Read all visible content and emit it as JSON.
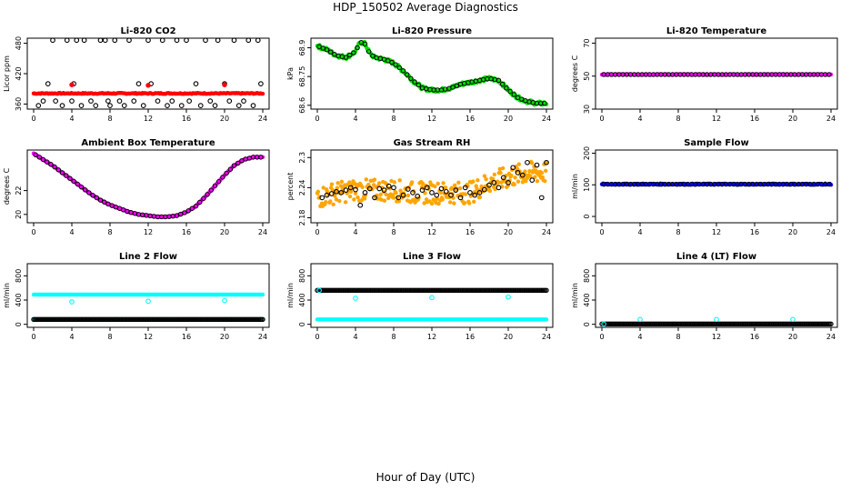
{
  "page": {
    "title": "HDP_150502  Average Diagnostics",
    "xlabel": "Hour of Day (UTC)"
  },
  "colors": {
    "black": "#000000",
    "red": "#ff0000",
    "green": "#00dd00",
    "magenta": "#ff00ff",
    "orange": "#ffa500",
    "blue": "#0000ff",
    "cyan": "#00ffff"
  },
  "chart_data": [
    {
      "type": "scatter",
      "title": "Li-820 CO2",
      "ylabel": "Licor ppm",
      "xlim": [
        0,
        24
      ],
      "ylim": [
        350,
        490
      ],
      "xticks": [
        0,
        4,
        8,
        12,
        16,
        20,
        24
      ],
      "yticks": [
        360,
        420,
        480
      ],
      "series": [
        {
          "color": "#ff0000",
          "style": "dense-line",
          "x": [
            0,
            24
          ],
          "y": [
            381,
            381
          ],
          "jitter": 1
        },
        {
          "color": "#000000",
          "marker": "open-circle",
          "x": [
            0.5,
            1.0,
            1.5,
            2.0,
            2.3,
            3.0,
            3.5,
            4.0,
            4.2,
            4.5,
            5.0,
            5.3,
            6.0,
            6.5,
            7.0,
            7.5,
            7.8,
            8.0,
            8.5,
            9.0,
            9.5,
            10.0,
            10.5,
            11.0,
            11.5,
            12.0,
            12.3,
            13.0,
            13.5,
            14.0,
            14.5,
            15.0,
            15.5,
            16.0,
            16.3,
            17.0,
            17.5,
            18.0,
            18.5,
            19.0,
            19.3,
            20.0,
            20.5,
            21.0,
            21.5,
            22.0,
            22.5,
            23.0,
            23.5,
            23.8
          ],
          "y": [
            357,
            366,
            400,
            486,
            366,
            357,
            486,
            366,
            400,
            486,
            357,
            486,
            366,
            357,
            486,
            486,
            366,
            357,
            486,
            366,
            357,
            486,
            366,
            400,
            357,
            486,
            400,
            366,
            486,
            357,
            366,
            486,
            357,
            486,
            366,
            400,
            357,
            486,
            366,
            357,
            486,
            400,
            366,
            486,
            357,
            366,
            486,
            357,
            486,
            400
          ]
        },
        {
          "color": "#ff0000",
          "marker": "filled-circle",
          "x": [
            4.0,
            12.0,
            20.0
          ],
          "y": [
            398,
            397,
            398
          ]
        }
      ]
    },
    {
      "type": "scatter",
      "title": "Li-820 Pressure",
      "ylabel": "kPa",
      "xlim": [
        0,
        24
      ],
      "ylim": [
        68.58,
        68.95
      ],
      "xticks": [
        0,
        4,
        8,
        12,
        16,
        20,
        24
      ],
      "yticks": [
        68.6,
        68.75,
        68.9
      ],
      "series": [
        {
          "color": "#00dd00",
          "style": "band",
          "jitter": 0.01,
          "x": [
            0,
            1,
            2,
            3,
            4,
            4.5,
            5,
            5.5,
            6,
            7,
            8,
            9,
            10,
            11,
            12,
            13,
            14,
            15,
            16,
            17,
            18,
            19,
            20,
            21,
            22,
            23,
            24
          ],
          "y": [
            68.91,
            68.89,
            68.86,
            68.85,
            68.88,
            68.93,
            68.92,
            68.87,
            68.85,
            68.84,
            68.82,
            68.78,
            68.73,
            68.69,
            68.68,
            68.68,
            68.69,
            68.71,
            68.72,
            68.73,
            68.74,
            68.73,
            68.68,
            68.64,
            68.62,
            68.61,
            68.61
          ]
        },
        {
          "color": "#000000",
          "marker": "open-circle",
          "source": "band",
          "every": 0.4
        }
      ]
    },
    {
      "type": "scatter",
      "title": "Li-820 Temperature",
      "ylabel": "degrees C",
      "xlim": [
        0,
        24
      ],
      "ylim": [
        30,
        73
      ],
      "xticks": [
        0,
        4,
        8,
        12,
        16,
        20,
        24
      ],
      "yticks": [
        30,
        50,
        70
      ],
      "series": [
        {
          "color": "#ff00ff",
          "style": "dense-line",
          "x": [
            0,
            24
          ],
          "y": [
            51,
            51
          ],
          "jitter": 0.2
        },
        {
          "color": "#000000",
          "marker": "open-circle",
          "source": "band",
          "every": 0.4
        }
      ]
    },
    {
      "type": "scatter",
      "title": "Ambient Box Temperature",
      "ylabel": "degrees C",
      "xlim": [
        0,
        24
      ],
      "ylim": [
        19.3,
        25.4
      ],
      "xticks": [
        0,
        4,
        8,
        12,
        16,
        20,
        24
      ],
      "yticks": [
        20,
        22
      ],
      "series": [
        {
          "color": "#ff00ff",
          "style": "band",
          "jitter": 0.02,
          "x": [
            0,
            1,
            2,
            3,
            4,
            5,
            6,
            7,
            8,
            9,
            10,
            11,
            12,
            13,
            14,
            15,
            16,
            17,
            18,
            19,
            20,
            21,
            22,
            23,
            24
          ],
          "y": [
            25.1,
            24.6,
            24.1,
            23.5,
            22.9,
            22.3,
            21.7,
            21.2,
            20.8,
            20.5,
            20.2,
            20.0,
            19.9,
            19.8,
            19.8,
            19.9,
            20.2,
            20.7,
            21.5,
            22.4,
            23.3,
            24.1,
            24.6,
            24.8,
            24.8
          ]
        },
        {
          "color": "#000000",
          "marker": "open-circle",
          "source": "band",
          "every": 0.4
        }
      ]
    },
    {
      "type": "scatter",
      "title": "Gas Stream RH",
      "ylabel": "percent",
      "xlim": [
        0,
        24
      ],
      "ylim": [
        2.17,
        2.315
      ],
      "xticks": [
        0,
        4,
        8,
        12,
        16,
        20,
        24
      ],
      "yticks": [
        2.18,
        2.24,
        2.3
      ],
      "series": [
        {
          "color": "#ffa500",
          "style": "band",
          "jitter": 0.022,
          "x": [
            0,
            2,
            4,
            6,
            8,
            10,
            12,
            14,
            16,
            18,
            20,
            22,
            24
          ],
          "y": [
            2.22,
            2.23,
            2.235,
            2.235,
            2.235,
            2.23,
            2.23,
            2.23,
            2.23,
            2.25,
            2.26,
            2.27,
            2.27
          ]
        },
        {
          "color": "#000000",
          "marker": "open-circle",
          "x": [
            0.5,
            1.0,
            1.5,
            2.0,
            2.5,
            3.0,
            3.5,
            4.0,
            4.5,
            5.0,
            5.5,
            6.0,
            6.5,
            7.0,
            7.5,
            8.0,
            8.5,
            9.0,
            9.5,
            10.0,
            10.5,
            11.0,
            11.5,
            12.0,
            12.5,
            13.0,
            13.5,
            14.0,
            14.5,
            15.0,
            15.5,
            16.0,
            16.5,
            17.0,
            17.5,
            18.0,
            18.5,
            19.0,
            19.5,
            20.0,
            20.5,
            21.0,
            21.5,
            22.0,
            22.5,
            23.0,
            23.5,
            24.0
          ],
          "y": [
            2.22,
            2.225,
            2.228,
            2.232,
            2.23,
            2.235,
            2.24,
            2.236,
            2.205,
            2.23,
            2.238,
            2.22,
            2.238,
            2.235,
            2.243,
            2.24,
            2.22,
            2.225,
            2.237,
            2.23,
            2.223,
            2.235,
            2.24,
            2.23,
            2.225,
            2.238,
            2.232,
            2.225,
            2.235,
            2.22,
            2.24,
            2.23,
            2.225,
            2.23,
            2.236,
            2.245,
            2.25,
            2.24,
            2.26,
            2.25,
            2.28,
            2.27,
            2.265,
            2.29,
            2.255,
            2.285,
            2.22,
            2.29
          ]
        }
      ]
    },
    {
      "type": "scatter",
      "title": "Sample Flow",
      "ylabel": "ml/min",
      "xlim": [
        0,
        24
      ],
      "ylim": [
        -20,
        210
      ],
      "xticks": [
        0,
        4,
        8,
        12,
        16,
        20,
        24
      ],
      "yticks": [
        0,
        100,
        200
      ],
      "series": [
        {
          "color": "#0000ff",
          "style": "dense-line",
          "x": [
            0,
            24
          ],
          "y": [
            102,
            102
          ],
          "jitter": 2
        },
        {
          "color": "#000000",
          "marker": "open-circle",
          "source": "band",
          "every": 0.4
        }
      ]
    },
    {
      "type": "scatter",
      "title": "Line 2 Flow",
      "ylabel": "ml/min",
      "xlim": [
        0,
        24
      ],
      "ylim": [
        -50,
        1000
      ],
      "xticks": [
        0,
        4,
        8,
        12,
        16,
        20,
        24
      ],
      "yticks": [
        0,
        400,
        800
      ],
      "series": [
        {
          "color": "#00ffff",
          "marker": "filled-circle",
          "style": "dense-line",
          "x": [
            0,
            24
          ],
          "y": [
            490,
            490
          ]
        },
        {
          "color": "#00ffff",
          "marker": "filled-circle",
          "style": "dense-line",
          "x": [
            0,
            24
          ],
          "y": [
            80,
            80
          ]
        },
        {
          "color": "#000000",
          "marker": "open-circle",
          "style": "dense-line",
          "x": [
            0,
            24
          ],
          "y": [
            80,
            80
          ]
        },
        {
          "color": "#00ffff",
          "marker": "open-circle",
          "x": [
            4.0,
            12.0,
            20.0
          ],
          "y": [
            370,
            380,
            390
          ]
        }
      ]
    },
    {
      "type": "scatter",
      "title": "Line 3 Flow",
      "ylabel": "ml/min",
      "xlim": [
        0,
        24
      ],
      "ylim": [
        -50,
        1000
      ],
      "xticks": [
        0,
        4,
        8,
        12,
        16,
        20,
        24
      ],
      "yticks": [
        0,
        400,
        800
      ],
      "series": [
        {
          "color": "#00ffff",
          "marker": "filled-circle",
          "style": "dense-line",
          "x": [
            0,
            24
          ],
          "y": [
            80,
            80
          ]
        },
        {
          "color": "#000000",
          "marker": "open-circle",
          "style": "dense-line",
          "x": [
            0,
            24
          ],
          "y": [
            560,
            560
          ]
        },
        {
          "color": "#00ffff",
          "marker": "open-circle",
          "x": [
            0.2,
            4.0,
            12.0,
            20.0
          ],
          "y": [
            560,
            430,
            440,
            450
          ]
        }
      ]
    },
    {
      "type": "scatter",
      "title": "Line 4 (LT) Flow",
      "ylabel": "ml/min",
      "xlim": [
        0,
        24
      ],
      "ylim": [
        -50,
        1000
      ],
      "xticks": [
        0,
        4,
        8,
        12,
        16,
        20,
        24
      ],
      "yticks": [
        0,
        400,
        800
      ],
      "series": [
        {
          "color": "#000000",
          "marker": "open-circle",
          "style": "dense-line",
          "x": [
            0,
            24
          ],
          "y": [
            5,
            5
          ]
        },
        {
          "color": "#00ffff",
          "marker": "open-circle",
          "x": [
            0.2,
            4.0,
            12.0,
            20.0
          ],
          "y": [
            5,
            80,
            80,
            80
          ]
        }
      ]
    }
  ]
}
